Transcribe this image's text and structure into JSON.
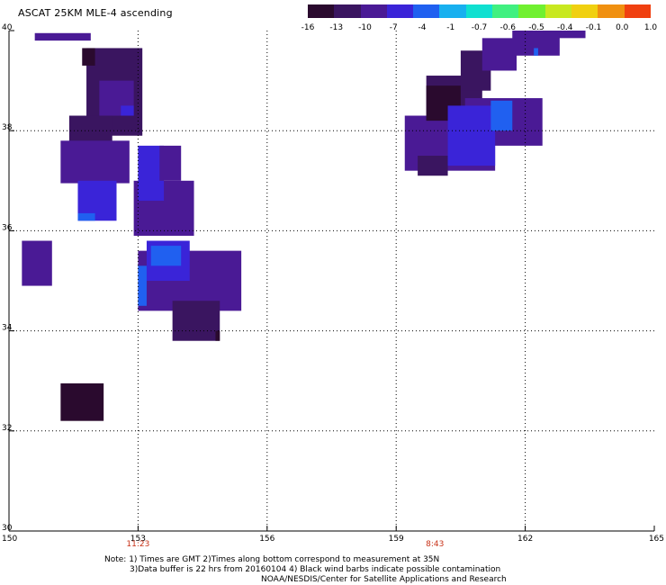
{
  "title": "ASCAT 25KM MLE-4 ascending",
  "colorbar": {
    "colors": [
      "#2a0a2e",
      "#3a1560",
      "#4a1a95",
      "#3a24d8",
      "#2060f0",
      "#18b0ef",
      "#10e0d0",
      "#40f080",
      "#70f030",
      "#c8e820",
      "#f0d010",
      "#f09010",
      "#f04010"
    ],
    "labels": [
      "-16",
      "-13",
      "-10",
      "-7",
      "-4",
      "-1",
      "-0.7",
      "-0.6",
      "-0.5",
      "-0.4",
      "-0.1",
      "0.0",
      "1.0"
    ]
  },
  "axes": {
    "x_ticks": [
      "150",
      "153",
      "156",
      "159",
      "162",
      "165"
    ],
    "y_ticks": [
      "40",
      "38",
      "36",
      "34",
      "32",
      "30"
    ]
  },
  "times": [
    {
      "label": "11:23",
      "lon": 153
    },
    {
      "label": "8:43",
      "lon": 159.9
    }
  ],
  "notes": {
    "line1": "Note: 1) Times are GMT 2)Times along bottom correspond to measurement at 35N",
    "line2": "3)Data buffer is 22 hrs from 20160104 4) Black wind barbs indicate possible contamination",
    "line3": "NOAA/NESDIS/Center for Satellite Applications and Research"
  },
  "map_data": {
    "lon_range": [
      150,
      165
    ],
    "lat_range": [
      30,
      40
    ],
    "swaths": [
      {
        "lon": [
          150.6,
          151.9
        ],
        "lat": [
          39.8,
          39.95
        ],
        "color": "#4a1a95"
      },
      {
        "lon": [
          151.8,
          153.1
        ],
        "lat": [
          37.9,
          39.65
        ],
        "color": "#3a1560"
      },
      {
        "lon": [
          152.1,
          152.9
        ],
        "lat": [
          38.3,
          39.0
        ],
        "color": "#4a1a95"
      },
      {
        "lon": [
          152.6,
          152.9
        ],
        "lat": [
          38.3,
          38.5
        ],
        "color": "#3a24d8"
      },
      {
        "lon": [
          151.7,
          152.0
        ],
        "lat": [
          39.3,
          39.65
        ],
        "color": "#2a0a2e"
      },
      {
        "lon": [
          151.4,
          152.4
        ],
        "lat": [
          37.1,
          38.3
        ],
        "color": "#3a1560"
      },
      {
        "lon": [
          151.2,
          152.8
        ],
        "lat": [
          36.95,
          37.8
        ],
        "color": "#4a1a95"
      },
      {
        "lon": [
          151.6,
          152.5
        ],
        "lat": [
          36.2,
          37.0
        ],
        "color": "#3a24d8"
      },
      {
        "lon": [
          151.6,
          152.0
        ],
        "lat": [
          36.2,
          36.35
        ],
        "color": "#2060f0"
      },
      {
        "lon": [
          152.9,
          154.3
        ],
        "lat": [
          35.9,
          37.0
        ],
        "color": "#4a1a95"
      },
      {
        "lon": [
          153.0,
          153.6
        ],
        "lat": [
          36.6,
          37.7
        ],
        "color": "#3a24d8"
      },
      {
        "lon": [
          153.5,
          154.0
        ],
        "lat": [
          37.0,
          37.7
        ],
        "color": "#4a1a95"
      },
      {
        "lon": [
          150.3,
          151.0
        ],
        "lat": [
          34.9,
          35.8
        ],
        "color": "#4a1a95"
      },
      {
        "lon": [
          153.0,
          155.4
        ],
        "lat": [
          34.4,
          35.6
        ],
        "color": "#4a1a95"
      },
      {
        "lon": [
          153.2,
          154.2
        ],
        "lat": [
          35.0,
          35.8
        ],
        "color": "#3a24d8"
      },
      {
        "lon": [
          153.3,
          154.0
        ],
        "lat": [
          35.3,
          35.7
        ],
        "color": "#2060f0"
      },
      {
        "lon": [
          153.0,
          153.2
        ],
        "lat": [
          34.5,
          35.3
        ],
        "color": "#2060f0"
      },
      {
        "lon": [
          153.8,
          154.9
        ],
        "lat": [
          33.8,
          34.6
        ],
        "color": "#3a1560"
      },
      {
        "lon": [
          154.8,
          154.9
        ],
        "lat": [
          33.8,
          34.0
        ],
        "color": "#2a0a2e"
      },
      {
        "lon": [
          151.2,
          152.2
        ],
        "lat": [
          32.2,
          32.95
        ],
        "color": "#2a0a2e"
      },
      {
        "lon": [
          159.2,
          161.3
        ],
        "lat": [
          37.2,
          38.3
        ],
        "color": "#4a1a95"
      },
      {
        "lon": [
          159.5,
          160.2
        ],
        "lat": [
          37.1,
          37.5
        ],
        "color": "#3a1560"
      },
      {
        "lon": [
          159.7,
          161.0
        ],
        "lat": [
          38.2,
          39.1
        ],
        "color": "#3a1560"
      },
      {
        "lon": [
          159.7,
          160.5
        ],
        "lat": [
          38.2,
          38.9
        ],
        "color": "#2a0a2e"
      },
      {
        "lon": [
          160.5,
          161.2
        ],
        "lat": [
          38.8,
          39.6
        ],
        "color": "#3a1560"
      },
      {
        "lon": [
          161.0,
          161.8
        ],
        "lat": [
          39.2,
          39.85
        ],
        "color": "#4a1a95"
      },
      {
        "lon": [
          161.7,
          162.8
        ],
        "lat": [
          39.5,
          40.0
        ],
        "color": "#4a1a95"
      },
      {
        "lon": [
          162.6,
          163.4
        ],
        "lat": [
          39.85,
          40.0
        ],
        "color": "#4a1a95"
      },
      {
        "lon": [
          160.6,
          162.4
        ],
        "lat": [
          37.7,
          38.65
        ],
        "color": "#4a1a95"
      },
      {
        "lon": [
          160.2,
          161.3
        ],
        "lat": [
          37.3,
          38.5
        ],
        "color": "#3a24d8"
      },
      {
        "lon": [
          161.2,
          161.7
        ],
        "lat": [
          38.0,
          38.6
        ],
        "color": "#2060f0"
      },
      {
        "lon": [
          162.2,
          162.3
        ],
        "lat": [
          39.5,
          39.65
        ],
        "color": "#2060f0"
      }
    ]
  }
}
